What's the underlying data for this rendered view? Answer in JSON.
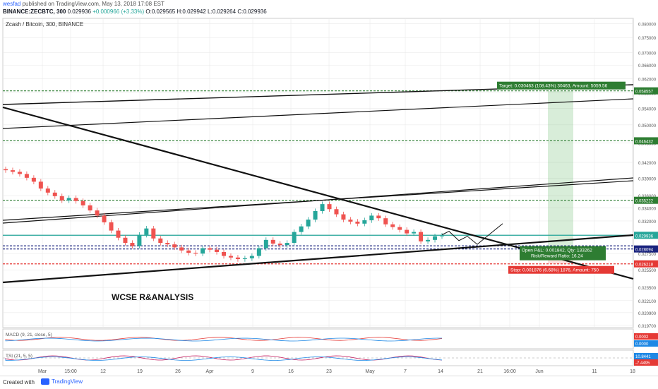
{
  "header": {
    "user": "wesfad",
    "published": "published on TradingView.com, May 13, 2018 17:08 EST",
    "symbol": "BINANCE:ZECBTC, 300",
    "last": "0.029936",
    "change": "+0.000966 (+3.33%)",
    "open": "O:0.029565",
    "high": "H:0.029942",
    "low": "L:0.029264",
    "close": "C:0.029936"
  },
  "pane_title": "Zcash / Bitcoin, 300, BINANCE",
  "annotation": "WCSE R&ANALYSIS",
  "footer": {
    "created": "Created with",
    "brand": "TradingView"
  },
  "colors": {
    "up": "#26a69a",
    "down": "#ef5350",
    "target": "#2e7d32",
    "stop": "#e53935",
    "entry": "#1a237e",
    "grid": "#e6e6e6"
  },
  "chart_data": {
    "type": "line",
    "price_scale": {
      "ticks": [
        "0.080000",
        "0.075000",
        "0.070000",
        "0.066000",
        "0.062000",
        "0.058000",
        "0.054000",
        "0.050000",
        "0.046000",
        "0.042000",
        "0.039000",
        "0.036000",
        "0.034000",
        "0.032000",
        "0.030000",
        "0.027500",
        "0.025500",
        "0.023500",
        "0.022100",
        "0.020900",
        "0.019700"
      ],
      "ylim": [
        0.0195,
        0.082
      ]
    },
    "time_scale": {
      "ticks": [
        "Mar",
        "15:00",
        "12",
        "19",
        "26",
        "Apr",
        "9",
        "16",
        "23",
        "May",
        "7",
        "14",
        "21",
        "16:00",
        "Jun",
        "11",
        "18"
      ]
    },
    "levels": [
      {
        "label": "0.058557",
        "price": 0.058557,
        "color": "#2e7d32",
        "style": "dashed"
      },
      {
        "label": "0.046432",
        "price": 0.046432,
        "color": "#2e7d32",
        "style": "dashed"
      },
      {
        "label": "0.035222",
        "price": 0.035222,
        "color": "#2e7d32",
        "style": "dashed"
      },
      {
        "label": "0.029936",
        "price": 0.029936,
        "color": "#26a69a",
        "style": "solid"
      },
      {
        "label": "0.028094",
        "price": 0.028094,
        "color": "#1a237e",
        "style": "dashed"
      },
      {
        "label": "0.026218",
        "price": 0.026218,
        "color": "#e53935",
        "style": "dashed"
      }
    ],
    "position": {
      "target_label": "Target: 0.030463 (108.43%) 30463, Amount: 5059.56",
      "open_label": "Open P&L: 0.001842, Qty: 133262",
      "rr_label": "Risk/Reward Ratio: 16.24",
      "stop_label": "Stop: 0.001876 (6.68%) 1876, Amount: 750"
    },
    "price_series": [
      0.0405,
      0.0402,
      0.0398,
      0.0391,
      0.0384,
      0.0372,
      0.0365,
      0.0359,
      0.0352,
      0.0356,
      0.0351,
      0.0344,
      0.0336,
      0.0328,
      0.0318,
      0.0306,
      0.0296,
      0.0289,
      0.0285,
      0.03,
      0.0309,
      0.0295,
      0.0289,
      0.0287,
      0.0283,
      0.0279,
      0.0276,
      0.0275,
      0.0282,
      0.028,
      0.0277,
      0.0272,
      0.027,
      0.0268,
      0.0269,
      0.0272,
      0.0282,
      0.0293,
      0.0288,
      0.0286,
      0.0289,
      0.0304,
      0.0312,
      0.0322,
      0.0335,
      0.0346,
      0.0338,
      0.033,
      0.0322,
      0.0319,
      0.0316,
      0.0321,
      0.0328,
      0.0324,
      0.0315,
      0.0311,
      0.0307,
      0.0302,
      0.0304,
      0.0291,
      0.0293,
      0.0298,
      0.0299
    ],
    "projection_path": [
      0.03,
      0.0305,
      0.0292,
      0.0298,
      0.0287,
      0.0298,
      0.0316
    ],
    "macd": {
      "name": "MACD (9, 21, close, 5)",
      "values": [
        "0.0002",
        "0.0000"
      ]
    },
    "tsi": {
      "name": "TSI (21, 5, 5)",
      "values": [
        "10.8441",
        "-7.4495"
      ]
    }
  }
}
